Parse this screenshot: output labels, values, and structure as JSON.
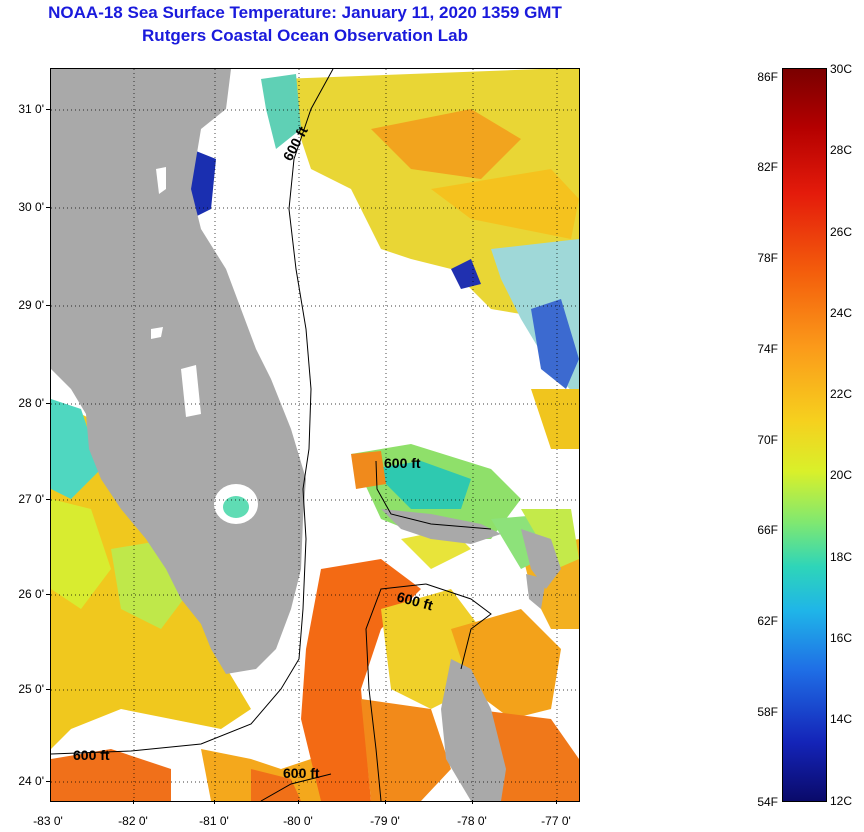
{
  "title": "NOAA-18 Sea Surface Temperature:  January 11, 2020 1359 GMT",
  "subtitle": "Rutgers Coastal Ocean Observation Lab",
  "y_labels": [
    "31 0'",
    "30 0'",
    "29 0'",
    "28 0'",
    "27 0'",
    "26 0'",
    "25 0'",
    "24 0'"
  ],
  "x_labels": [
    "-83 0'",
    "-82 0'",
    "-81 0'",
    "-80 0'",
    "-79 0'",
    "-78 0'",
    "-77 0'"
  ],
  "depth_label": "600 ft",
  "colorbar": {
    "fahrenheit": [
      "86F",
      "82F",
      "78F",
      "74F",
      "70F",
      "66F",
      "62F",
      "58F",
      "54F"
    ],
    "celsius": [
      "30C",
      "28C",
      "26C",
      "24C",
      "22C",
      "20C",
      "18C",
      "16C",
      "14C",
      "12C"
    ]
  },
  "colors": {
    "title": "#1a1adc",
    "land": "#a9a9a9"
  }
}
